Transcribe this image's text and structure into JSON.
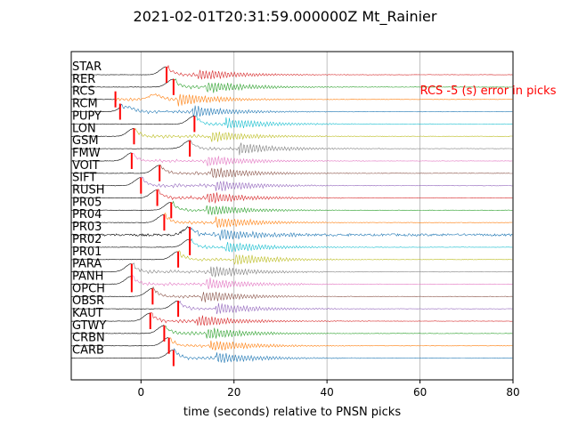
{
  "chart_data": {
    "type": "line",
    "title": "2021-02-01T20:31:59.000000Z Mt_Rainier",
    "xlabel": "time (seconds) relative to PNSN picks",
    "ylabel": "",
    "xlim": [
      -15,
      80
    ],
    "xticks": [
      0,
      20,
      40,
      60,
      80
    ],
    "grid": "vertical",
    "annotation": {
      "text": "RCS -5 (s) error in picks",
      "color": "#ff0000",
      "x": 60,
      "station": "RCS"
    },
    "pick_color": "#ff0000",
    "stations": [
      {
        "name": "STAR",
        "color": "#d62728",
        "pick": 5.5,
        "p_peak": 5.5,
        "s_arrival": 12
      },
      {
        "name": "RER",
        "color": "#2ca02c",
        "pick": 7,
        "p_peak": 7,
        "s_arrival": 14
      },
      {
        "name": "RCS",
        "color": "#ff7f0e",
        "pick": -5.5,
        "p_peak": 3,
        "s_arrival": 8
      },
      {
        "name": "RCM",
        "color": "#1f77b4",
        "pick": -4.5,
        "p_peak": -3,
        "s_arrival": 11
      },
      {
        "name": "PUPY",
        "color": "#17becf",
        "pick": 11.5,
        "p_peak": 11.5,
        "s_arrival": 18
      },
      {
        "name": "LON",
        "color": "#bcbd22",
        "pick": -1.5,
        "p_peak": -1.5,
        "s_arrival": 15
      },
      {
        "name": "GSM",
        "color": "#7f7f7f",
        "pick": 10.5,
        "p_peak": 10.5,
        "s_arrival": 21
      },
      {
        "name": "FMW",
        "color": "#e377c2",
        "pick": -2,
        "p_peak": -2,
        "s_arrival": 14
      },
      {
        "name": "VOIT",
        "color": "#8c564b",
        "pick": 4,
        "p_peak": 4,
        "s_arrival": 15
      },
      {
        "name": "SIFT",
        "color": "#9467bd",
        "pick": 0,
        "p_peak": 0,
        "s_arrival": 16
      },
      {
        "name": "RUSH",
        "color": "#d62728",
        "pick": 3.5,
        "p_peak": 3.5,
        "s_arrival": 14
      },
      {
        "name": "PR05",
        "color": "#2ca02c",
        "pick": 6.5,
        "p_peak": 6.5,
        "s_arrival": 14
      },
      {
        "name": "PR04",
        "color": "#ff7f0e",
        "pick": 5,
        "p_peak": 5,
        "s_arrival": 16
      },
      {
        "name": "PR03",
        "color": "#1f77b4",
        "pick": 10.5,
        "p_peak": 10.5,
        "s_arrival": 17
      },
      {
        "name": "PR02",
        "color": "#17becf",
        "pick": 10.5,
        "p_peak": 10.5,
        "s_arrival": 18
      },
      {
        "name": "PR01",
        "color": "#bcbd22",
        "pick": 8,
        "p_peak": 8,
        "s_arrival": 20
      },
      {
        "name": "PARA",
        "color": "#7f7f7f",
        "pick": -2,
        "p_peak": -2,
        "s_arrival": 15
      },
      {
        "name": "PANH",
        "color": "#e377c2",
        "pick": -2,
        "p_peak": -2,
        "s_arrival": 14
      },
      {
        "name": "OPCH",
        "color": "#8c564b",
        "pick": 2.5,
        "p_peak": 2.5,
        "s_arrival": 13
      },
      {
        "name": "OBSR",
        "color": "#9467bd",
        "pick": 8,
        "p_peak": 8,
        "s_arrival": 16
      },
      {
        "name": "KAUT",
        "color": "#d62728",
        "pick": 2,
        "p_peak": 2,
        "s_arrival": 12
      },
      {
        "name": "GTWY",
        "color": "#2ca02c",
        "pick": 5,
        "p_peak": 5,
        "s_arrival": 14
      },
      {
        "name": "CRBN",
        "color": "#ff7f0e",
        "pick": 6,
        "p_peak": 6,
        "s_arrival": 15
      },
      {
        "name": "CARB",
        "color": "#1f77b4",
        "pick": 7,
        "p_peak": 7,
        "s_arrival": 16
      }
    ]
  }
}
